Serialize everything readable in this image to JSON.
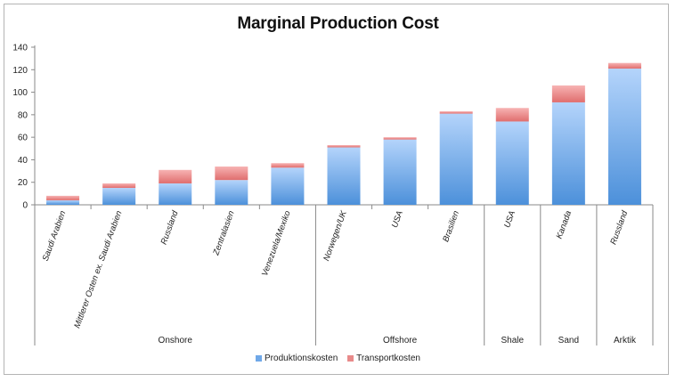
{
  "chart_data": {
    "type": "bar",
    "stacked": true,
    "title": "Marginal Production Cost",
    "categories": [
      "Saudi Arabien",
      "Mittlerer Osten ex. Saudi Arabien",
      "Russland",
      "Zentralasien",
      "Venezuela/Mexiko",
      "Norwegen/UK",
      "USA",
      "Brasilien",
      "USA",
      "Kanada",
      "Russland"
    ],
    "groups": [
      {
        "label": "Onshore",
        "count": 5
      },
      {
        "label": "Offshore",
        "count": 3
      },
      {
        "label": "Shale",
        "count": 1
      },
      {
        "label": "Sand",
        "count": 1
      },
      {
        "label": "Arktik",
        "count": 1
      }
    ],
    "series": [
      {
        "name": "Produktionskosten",
        "color": "#6fa8e8",
        "values": [
          4,
          15,
          19,
          22,
          33,
          51,
          58,
          81,
          74,
          91,
          121
        ]
      },
      {
        "name": "Transportkosten",
        "color": "#e88a8a",
        "values": [
          4,
          4,
          12,
          12,
          4,
          2,
          2,
          2,
          12,
          15,
          5
        ]
      }
    ],
    "ylim": [
      0,
      140
    ],
    "yticks": [
      0,
      20,
      40,
      60,
      80,
      100,
      120,
      140
    ],
    "xlabel": "",
    "ylabel": "",
    "legend_position": "bottom"
  }
}
